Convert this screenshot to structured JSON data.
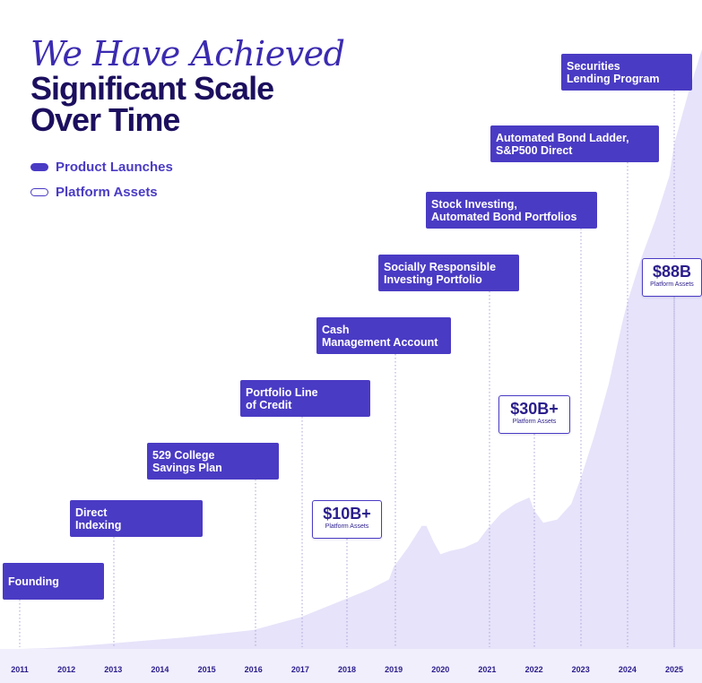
{
  "title": {
    "script_line": "We Have Achieved",
    "bold_lines": [
      "Significant Scale",
      "Over Time"
    ]
  },
  "legend": [
    {
      "label": "Product Launches",
      "style": "filled"
    },
    {
      "label": "Platform Assets",
      "style": "outline"
    }
  ],
  "colors": {
    "primary": "#4a3bc4",
    "title_dark": "#1c0f5e",
    "area_fill": "#e6e3fa",
    "dotted_line": "#a9a3d6"
  },
  "chart_data": {
    "type": "area",
    "x_ticks": [
      "2011",
      "2012",
      "2013",
      "2014",
      "2015",
      "2016",
      "2017",
      "2018",
      "2019",
      "2020",
      "2021",
      "2022",
      "2023",
      "2024",
      "2025"
    ],
    "xlim": [
      2011,
      2025.6
    ],
    "series": [
      {
        "x": [
          2011.0,
          2011.5,
          2012.0,
          2012.5,
          2013.0,
          2013.5,
          2014.0,
          2014.5,
          2015.0,
          2015.5,
          2016.0,
          2016.5,
          2017.0,
          2017.5,
          2018.0,
          2018.5,
          2018.9,
          2019.0,
          2019.3,
          2019.6,
          2019.7,
          2019.85,
          2020.0,
          2020.2,
          2020.5,
          2020.8,
          2021.0,
          2021.3,
          2021.6,
          2021.9,
          2022.0,
          2022.2,
          2022.5,
          2022.8,
          2023.0,
          2023.3,
          2023.6,
          2023.9,
          2024.0,
          2024.3,
          2024.6,
          2024.9,
          2025.0,
          2025.3,
          2025.6
        ],
        "y": [
          0.0,
          0.1,
          0.3,
          0.6,
          0.9,
          1.2,
          1.5,
          1.8,
          2.2,
          2.6,
          3.0,
          4.0,
          5.0,
          6.5,
          8.0,
          9.5,
          11.0,
          13.0,
          16.0,
          19.5,
          19.5,
          17.0,
          15.0,
          15.5,
          16.0,
          17.0,
          19.0,
          21.5,
          23.0,
          24.0,
          22.0,
          20.0,
          20.5,
          23.0,
          27.0,
          34.0,
          42.0,
          52.0,
          55.0,
          62.0,
          68.0,
          75.0,
          80.0,
          88.0,
          95.0
        ]
      }
    ],
    "product_launches": [
      {
        "year": 2011,
        "lines": [
          "Founding"
        ]
      },
      {
        "year": 2013,
        "lines": [
          "Direct",
          "Indexing"
        ]
      },
      {
        "year": 2016,
        "lines": [
          "529 College",
          "Savings Plan"
        ]
      },
      {
        "year": 2017,
        "lines": [
          "Portfolio Line",
          "of Credit"
        ]
      },
      {
        "year": 2019,
        "lines": [
          "Cash",
          "Management Account"
        ]
      },
      {
        "year": 2021,
        "lines": [
          "Socially Responsible",
          "Investing Portfolio"
        ]
      },
      {
        "year": 2023,
        "lines": [
          "Stock Investing,",
          "Automated Bond Portfolios"
        ]
      },
      {
        "year": 2024,
        "lines": [
          "Automated Bond Ladder,",
          "S&P500 Direct"
        ]
      },
      {
        "year": 2025,
        "lines": [
          "Securities",
          "Lending Program"
        ]
      }
    ],
    "asset_callouts": [
      {
        "year": 2018,
        "value": "$10B+",
        "label": "Platform Assets"
      },
      {
        "year": 2022,
        "value": "$30B+",
        "label": "Platform Assets"
      },
      {
        "year": 2025,
        "value": "$88B",
        "label": "Platform Assets"
      }
    ],
    "grid": false,
    "legend_position": "top-left"
  }
}
